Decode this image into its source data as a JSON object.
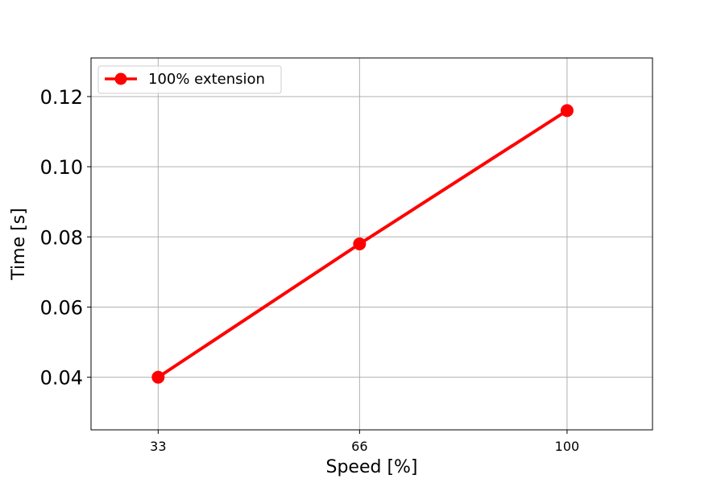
{
  "chart_data": {
    "type": "line",
    "title": "",
    "xlabel": "Speed [%]",
    "ylabel": "Time [s]",
    "x": [
      33,
      66,
      100
    ],
    "xlim": [
      22,
      114
    ],
    "ylim": [
      0.025,
      0.131
    ],
    "xticks": [
      33,
      66,
      100
    ],
    "xtick_labels": [
      "33",
      "66",
      "100"
    ],
    "yticks": [
      0.04,
      0.06,
      0.08,
      0.1,
      0.12
    ],
    "ytick_labels": [
      "0.04",
      "0.06",
      "0.08",
      "0.10",
      "0.12"
    ],
    "grid": true,
    "legend": {
      "placement": "top-left"
    },
    "series": [
      {
        "name": "100% extension",
        "values": [
          0.04,
          0.078,
          0.116
        ],
        "color": "#ff0000",
        "marker": "circle"
      }
    ]
  }
}
